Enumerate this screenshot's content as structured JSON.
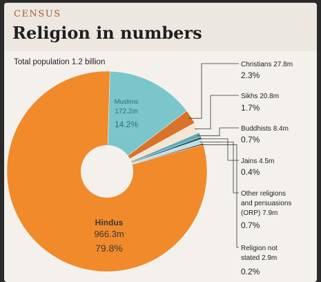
{
  "header": {
    "kicker": "CENSUS",
    "title": "Religion in numbers"
  },
  "chart_data": {
    "type": "pie",
    "subtitle": "Total population 1.2 billion",
    "slices": [
      {
        "name": "Hindus",
        "amount": "966.3m",
        "percent": 79.8,
        "percent_label": "79.8%",
        "color": "#f08a2b"
      },
      {
        "name": "Muslims",
        "amount": "172.2m",
        "percent": 14.2,
        "percent_label": "14.2%",
        "color": "#7ac6ca"
      },
      {
        "name": "Christians",
        "amount": "27.8m",
        "percent": 2.3,
        "percent_label": "2.3%",
        "color": "#d9732a"
      },
      {
        "name": "Sikhs",
        "amount": "20.8m",
        "percent": 1.7,
        "percent_label": "1.7%",
        "color": "#f3e6d2"
      },
      {
        "name": "Buddhists",
        "amount": "8.4m",
        "percent": 0.7,
        "percent_label": "0.7%",
        "color": "#5fa9b6"
      },
      {
        "name": "Jains",
        "amount": "4.5m",
        "percent": 0.4,
        "percent_label": "0.4%",
        "color": "#2f5f7a"
      },
      {
        "name": "Other religions and persuasions (ORP)",
        "amount": "7.9m",
        "percent": 0.7,
        "percent_label": "0.7%",
        "color": "#bfe0e2"
      },
      {
        "name": "Religion not stated",
        "amount": "2.9m",
        "percent": 0.2,
        "percent_label": "0.2%",
        "color": "#1b1b1b"
      }
    ]
  }
}
